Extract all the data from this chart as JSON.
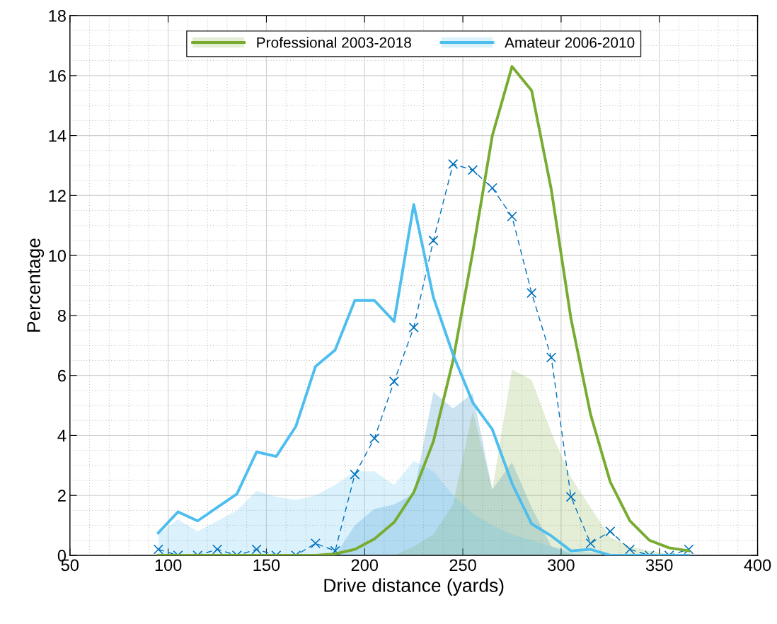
{
  "chart_data": {
    "type": "line",
    "xlabel": "Drive distance (yards)",
    "ylabel": "Percentage",
    "x": [
      95,
      105,
      115,
      125,
      135,
      145,
      155,
      165,
      175,
      185,
      195,
      205,
      215,
      225,
      235,
      245,
      255,
      265,
      275,
      285,
      295,
      305,
      315,
      325,
      335,
      345,
      355,
      365
    ],
    "series": [
      {
        "type": "area",
        "color": "#0072bd",
        "values": [
          0,
          0,
          0,
          0,
          0,
          0,
          0,
          0,
          0,
          0,
          1.0,
          1.55,
          1.7,
          2.05,
          5.45,
          4.9,
          5.4,
          2.2,
          3.1,
          1.6,
          0.3,
          0.05,
          0,
          0,
          0,
          0,
          0,
          0
        ]
      },
      {
        "type": "area",
        "color": "#77ac30",
        "values": [
          0,
          0,
          0,
          0,
          0,
          0,
          0,
          0,
          0,
          0,
          0,
          0,
          0,
          0.3,
          0.7,
          1.7,
          4.8,
          2.2,
          6.2,
          5.85,
          4.1,
          2.6,
          1.6,
          0.6,
          0.3,
          0.15,
          0.05,
          0
        ]
      },
      {
        "type": "area",
        "color": "#4dbeee",
        "values": [
          0.7,
          1.2,
          0.8,
          1.15,
          1.5,
          2.15,
          1.95,
          1.85,
          2.0,
          2.35,
          2.8,
          2.8,
          2.35,
          3.15,
          2.8,
          2.0,
          1.4,
          1.0,
          0.7,
          0.5,
          0.3,
          0.15,
          0.1,
          0,
          0,
          0,
          0,
          0
        ]
      },
      {
        "color": "#0072bd",
        "line_style": "dashed",
        "marker": "cross",
        "values": [
          0.2,
          0,
          0,
          0.2,
          0,
          0.2,
          0,
          0,
          0.4,
          0.15,
          2.7,
          3.9,
          5.8,
          7.6,
          10.5,
          13.05,
          12.85,
          12.25,
          11.3,
          8.75,
          6.6,
          1.95,
          0.4,
          0.8,
          0.2,
          0,
          0,
          0.2
        ]
      },
      {
        "name": "Professional 2003-2018",
        "color": "#77ac30",
        "values": [
          0,
          0,
          0,
          0,
          0,
          0,
          0,
          0,
          0,
          0.05,
          0.2,
          0.55,
          1.1,
          2.1,
          3.8,
          6.5,
          10.1,
          14.0,
          16.3,
          15.5,
          12.2,
          7.9,
          4.7,
          2.45,
          1.15,
          0.5,
          0.25,
          0.15
        ]
      },
      {
        "name": "Amateur 2006-2010",
        "color": "#4dbeee",
        "values": [
          0.75,
          1.45,
          1.15,
          1.6,
          2.05,
          3.45,
          3.3,
          4.3,
          6.3,
          6.85,
          8.5,
          8.5,
          7.8,
          11.7,
          8.6,
          6.7,
          5.1,
          4.2,
          2.4,
          1.05,
          0.65,
          0.15,
          0.2,
          0,
          0,
          0,
          0,
          0
        ]
      }
    ],
    "xlim": [
      50,
      400
    ],
    "xticks": [
      50,
      100,
      150,
      200,
      250,
      300,
      350,
      400
    ],
    "ylim": [
      0,
      18
    ],
    "yticks": [
      0,
      2,
      4,
      6,
      8,
      10,
      12,
      14,
      16,
      18
    ],
    "grid": true,
    "legend": "top"
  }
}
